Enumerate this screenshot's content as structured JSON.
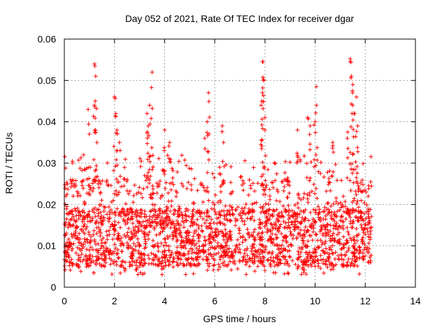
{
  "chart_data": {
    "type": "scatter",
    "title": "Day 052 of 2021, Rate Of TEC Index for receiver dgar",
    "xlabel": "GPS time / hours",
    "ylabel": "ROTI / TECUs",
    "xlim": [
      0,
      14
    ],
    "ylim": [
      0,
      0.06
    ],
    "xticks": [
      0,
      2,
      4,
      6,
      8,
      10,
      12,
      14
    ],
    "xtick_labels": [
      "0",
      "2",
      "4",
      "6",
      "8",
      "10",
      "12",
      "14"
    ],
    "yticks": [
      0,
      0.01,
      0.02,
      0.03,
      0.04,
      0.05,
      0.06
    ],
    "ytick_labels": [
      "0",
      "0.01",
      "0.02",
      "0.03",
      "0.04",
      "0.05",
      "0.06"
    ],
    "grid": true,
    "marker": "+",
    "color": "#ff0000",
    "series": [
      {
        "name": "ROTI",
        "x_range": [
          0.0,
          12.25
        ],
        "bulk_y_range": [
          0.003,
          0.028
        ],
        "peaks": [
          {
            "x": 0.95,
            "y": 0.043
          },
          {
            "x": 1.0,
            "y": 0.037
          },
          {
            "x": 1.2,
            "y": 0.054
          },
          {
            "x": 1.22,
            "y": 0.0535
          },
          {
            "x": 1.25,
            "y": 0.051
          },
          {
            "x": 1.2,
            "y": 0.044
          },
          {
            "x": 1.3,
            "y": 0.035
          },
          {
            "x": 2.0,
            "y": 0.046
          },
          {
            "x": 2.05,
            "y": 0.042
          },
          {
            "x": 2.1,
            "y": 0.038
          },
          {
            "x": 2.2,
            "y": 0.035
          },
          {
            "x": 3.3,
            "y": 0.042
          },
          {
            "x": 3.35,
            "y": 0.039
          },
          {
            "x": 3.4,
            "y": 0.044
          },
          {
            "x": 3.5,
            "y": 0.052
          },
          {
            "x": 4.0,
            "y": 0.038
          },
          {
            "x": 4.2,
            "y": 0.035
          },
          {
            "x": 5.6,
            "y": 0.036
          },
          {
            "x": 5.7,
            "y": 0.04
          },
          {
            "x": 5.75,
            "y": 0.047
          },
          {
            "x": 6.3,
            "y": 0.039
          },
          {
            "x": 6.35,
            "y": 0.035
          },
          {
            "x": 7.9,
            "y": 0.0545
          },
          {
            "x": 7.92,
            "y": 0.0545
          },
          {
            "x": 7.95,
            "y": 0.05
          },
          {
            "x": 7.9,
            "y": 0.047
          },
          {
            "x": 7.85,
            "y": 0.044
          },
          {
            "x": 8.0,
            "y": 0.041
          },
          {
            "x": 8.0,
            "y": 0.038
          },
          {
            "x": 9.3,
            "y": 0.038
          },
          {
            "x": 9.7,
            "y": 0.041
          },
          {
            "x": 9.8,
            "y": 0.039
          },
          {
            "x": 10.0,
            "y": 0.04
          },
          {
            "x": 10.05,
            "y": 0.0485
          },
          {
            "x": 10.7,
            "y": 0.035
          },
          {
            "x": 11.3,
            "y": 0.0375
          },
          {
            "x": 11.4,
            "y": 0.0552
          },
          {
            "x": 11.45,
            "y": 0.051
          },
          {
            "x": 11.5,
            "y": 0.049
          },
          {
            "x": 11.5,
            "y": 0.044
          },
          {
            "x": 11.55,
            "y": 0.042
          },
          {
            "x": 11.65,
            "y": 0.046
          },
          {
            "x": 11.7,
            "y": 0.039
          }
        ]
      }
    ]
  }
}
